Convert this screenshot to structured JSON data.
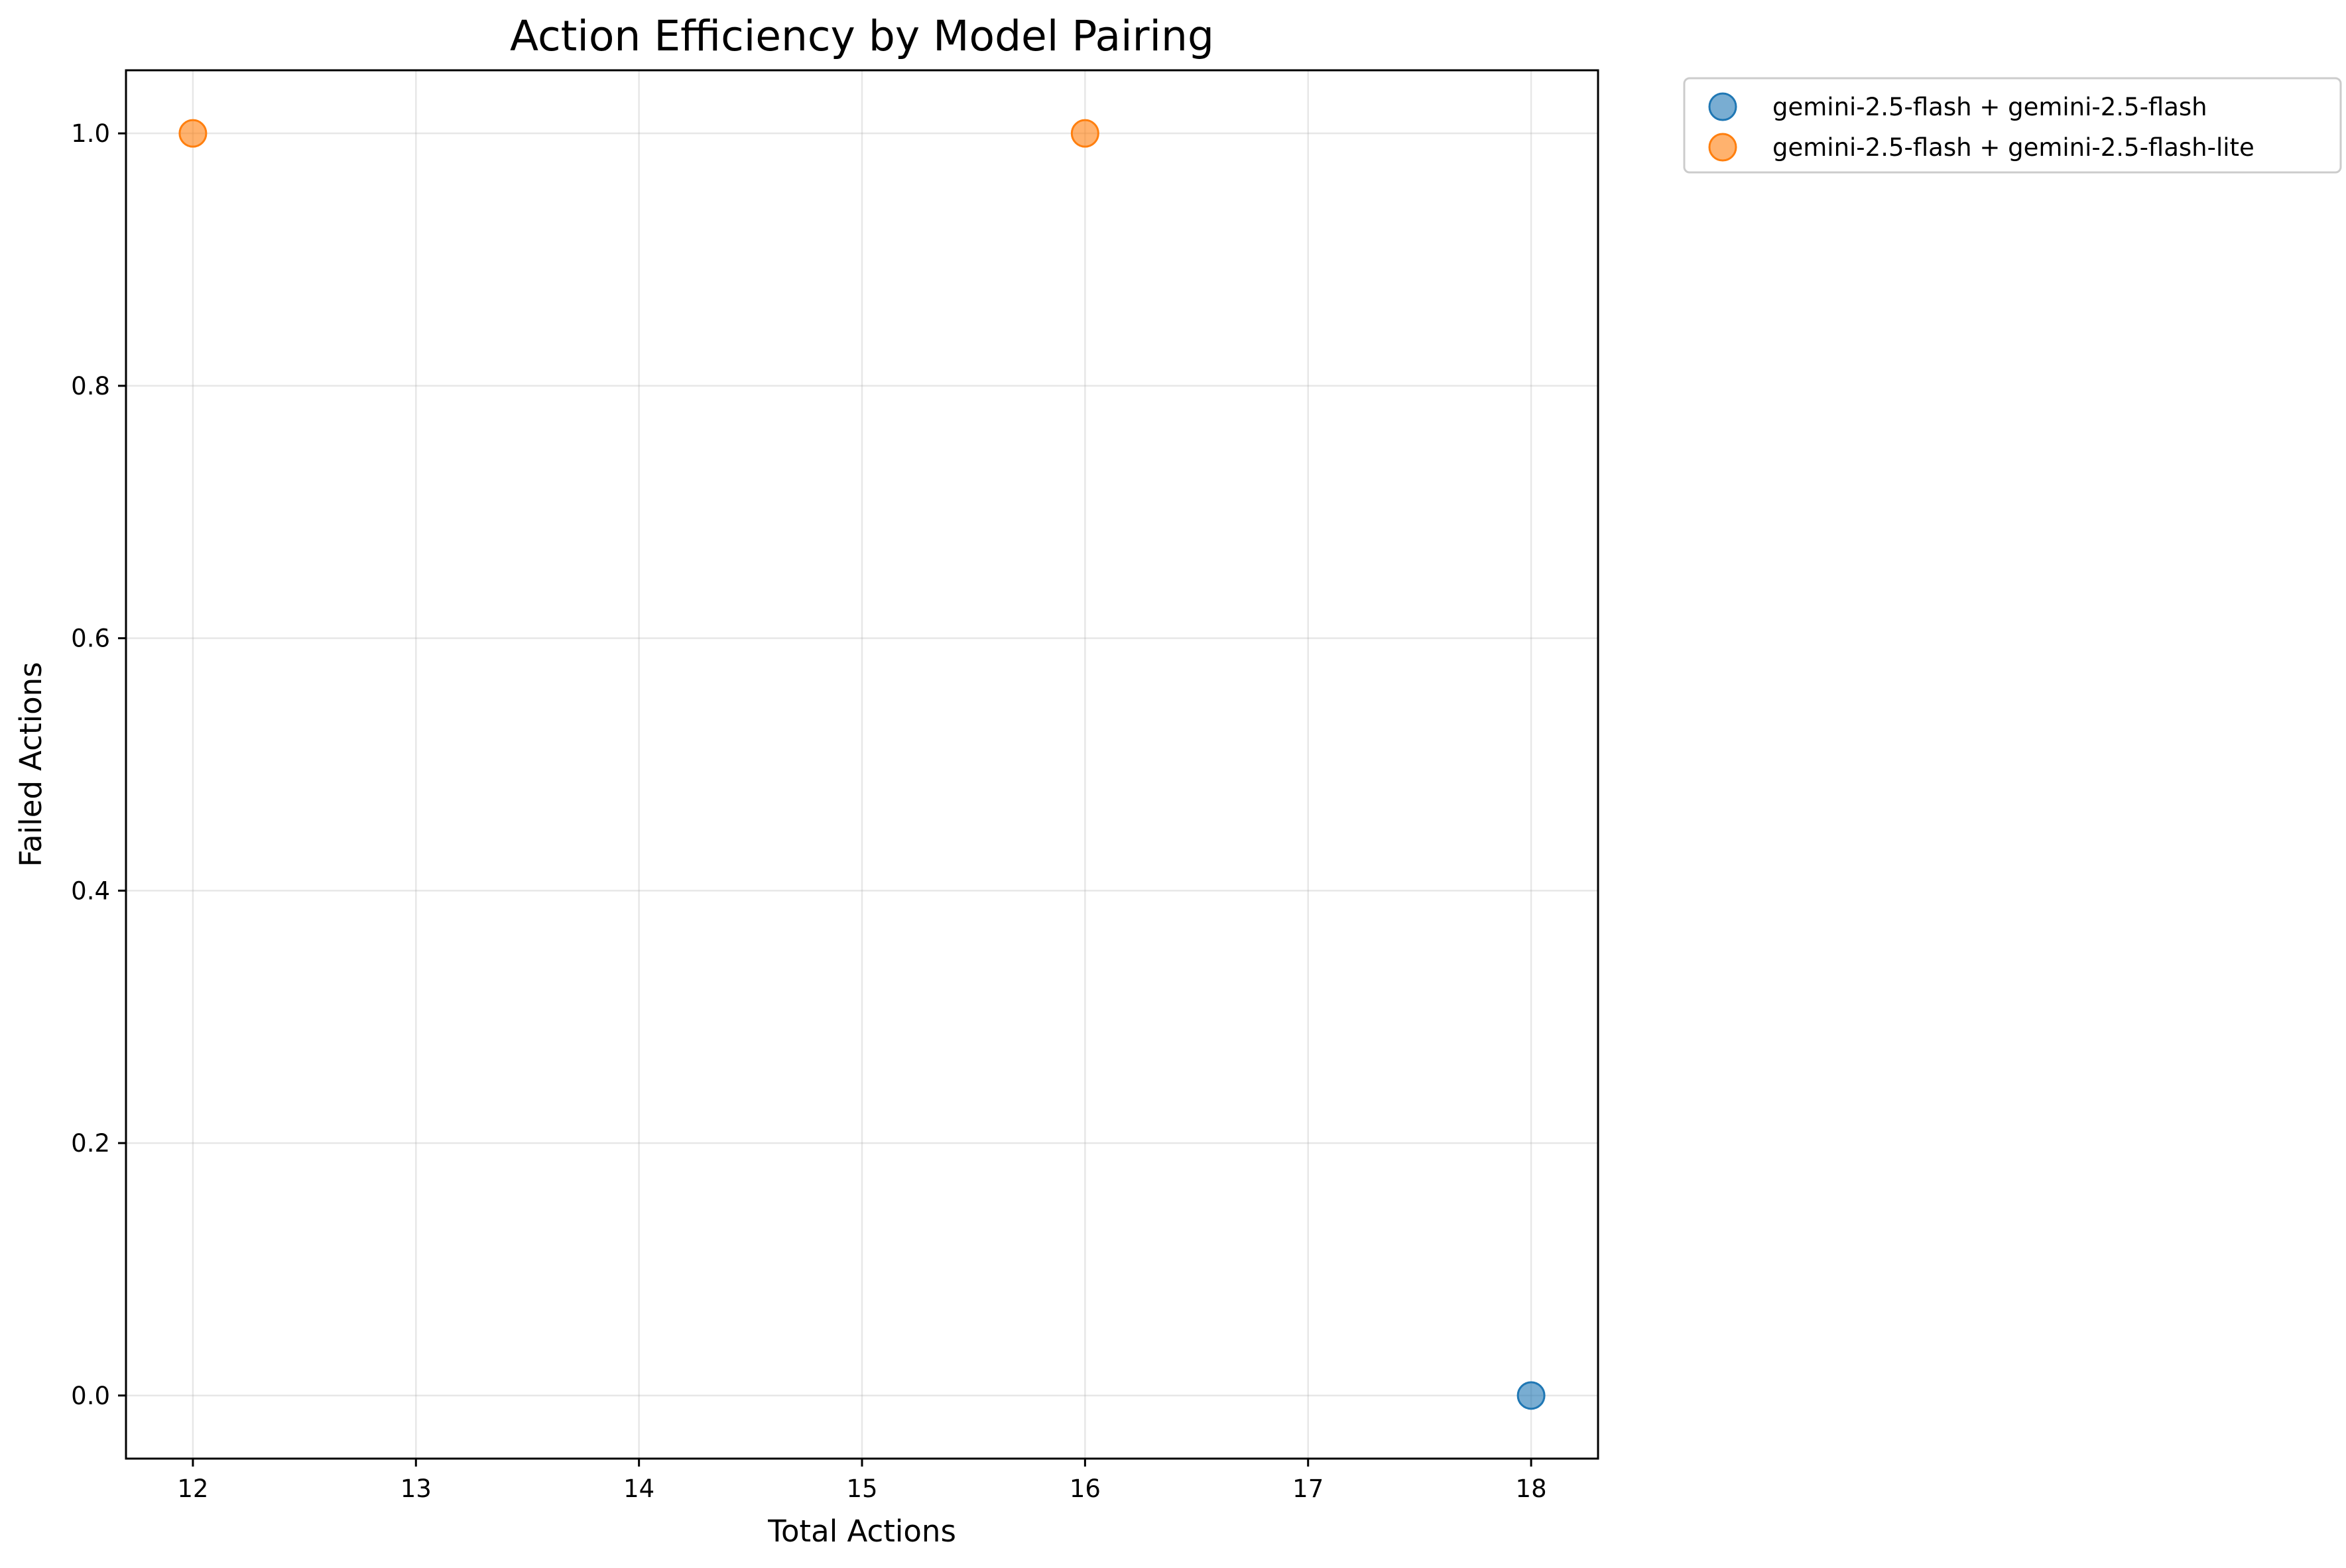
{
  "chart_data": {
    "type": "scatter",
    "title": "Action Efficiency by Model Pairing",
    "xlabel": "Total Actions",
    "ylabel": "Failed Actions",
    "xlim": [
      11.7,
      18.3
    ],
    "ylim": [
      -0.05,
      1.05
    ],
    "xticks": [
      12,
      13,
      14,
      15,
      16,
      17,
      18
    ],
    "yticks": [
      0.0,
      0.2,
      0.4,
      0.6,
      0.8,
      1.0
    ],
    "xtick_labels": [
      "12",
      "13",
      "14",
      "15",
      "16",
      "17",
      "18"
    ],
    "ytick_labels": [
      "0.0",
      "0.2",
      "0.4",
      "0.6",
      "0.8",
      "1.0"
    ],
    "grid": true,
    "legend_position": "outside-upper-right",
    "series": [
      {
        "name": "gemini-2.5-flash + gemini-2.5-flash",
        "color": "#1f77b4",
        "points": [
          {
            "x": 18,
            "y": 0
          }
        ]
      },
      {
        "name": "gemini-2.5-flash + gemini-2.5-flash-lite",
        "color": "#ff7f0e",
        "points": [
          {
            "x": 12,
            "y": 1
          },
          {
            "x": 16,
            "y": 1
          }
        ]
      }
    ]
  }
}
